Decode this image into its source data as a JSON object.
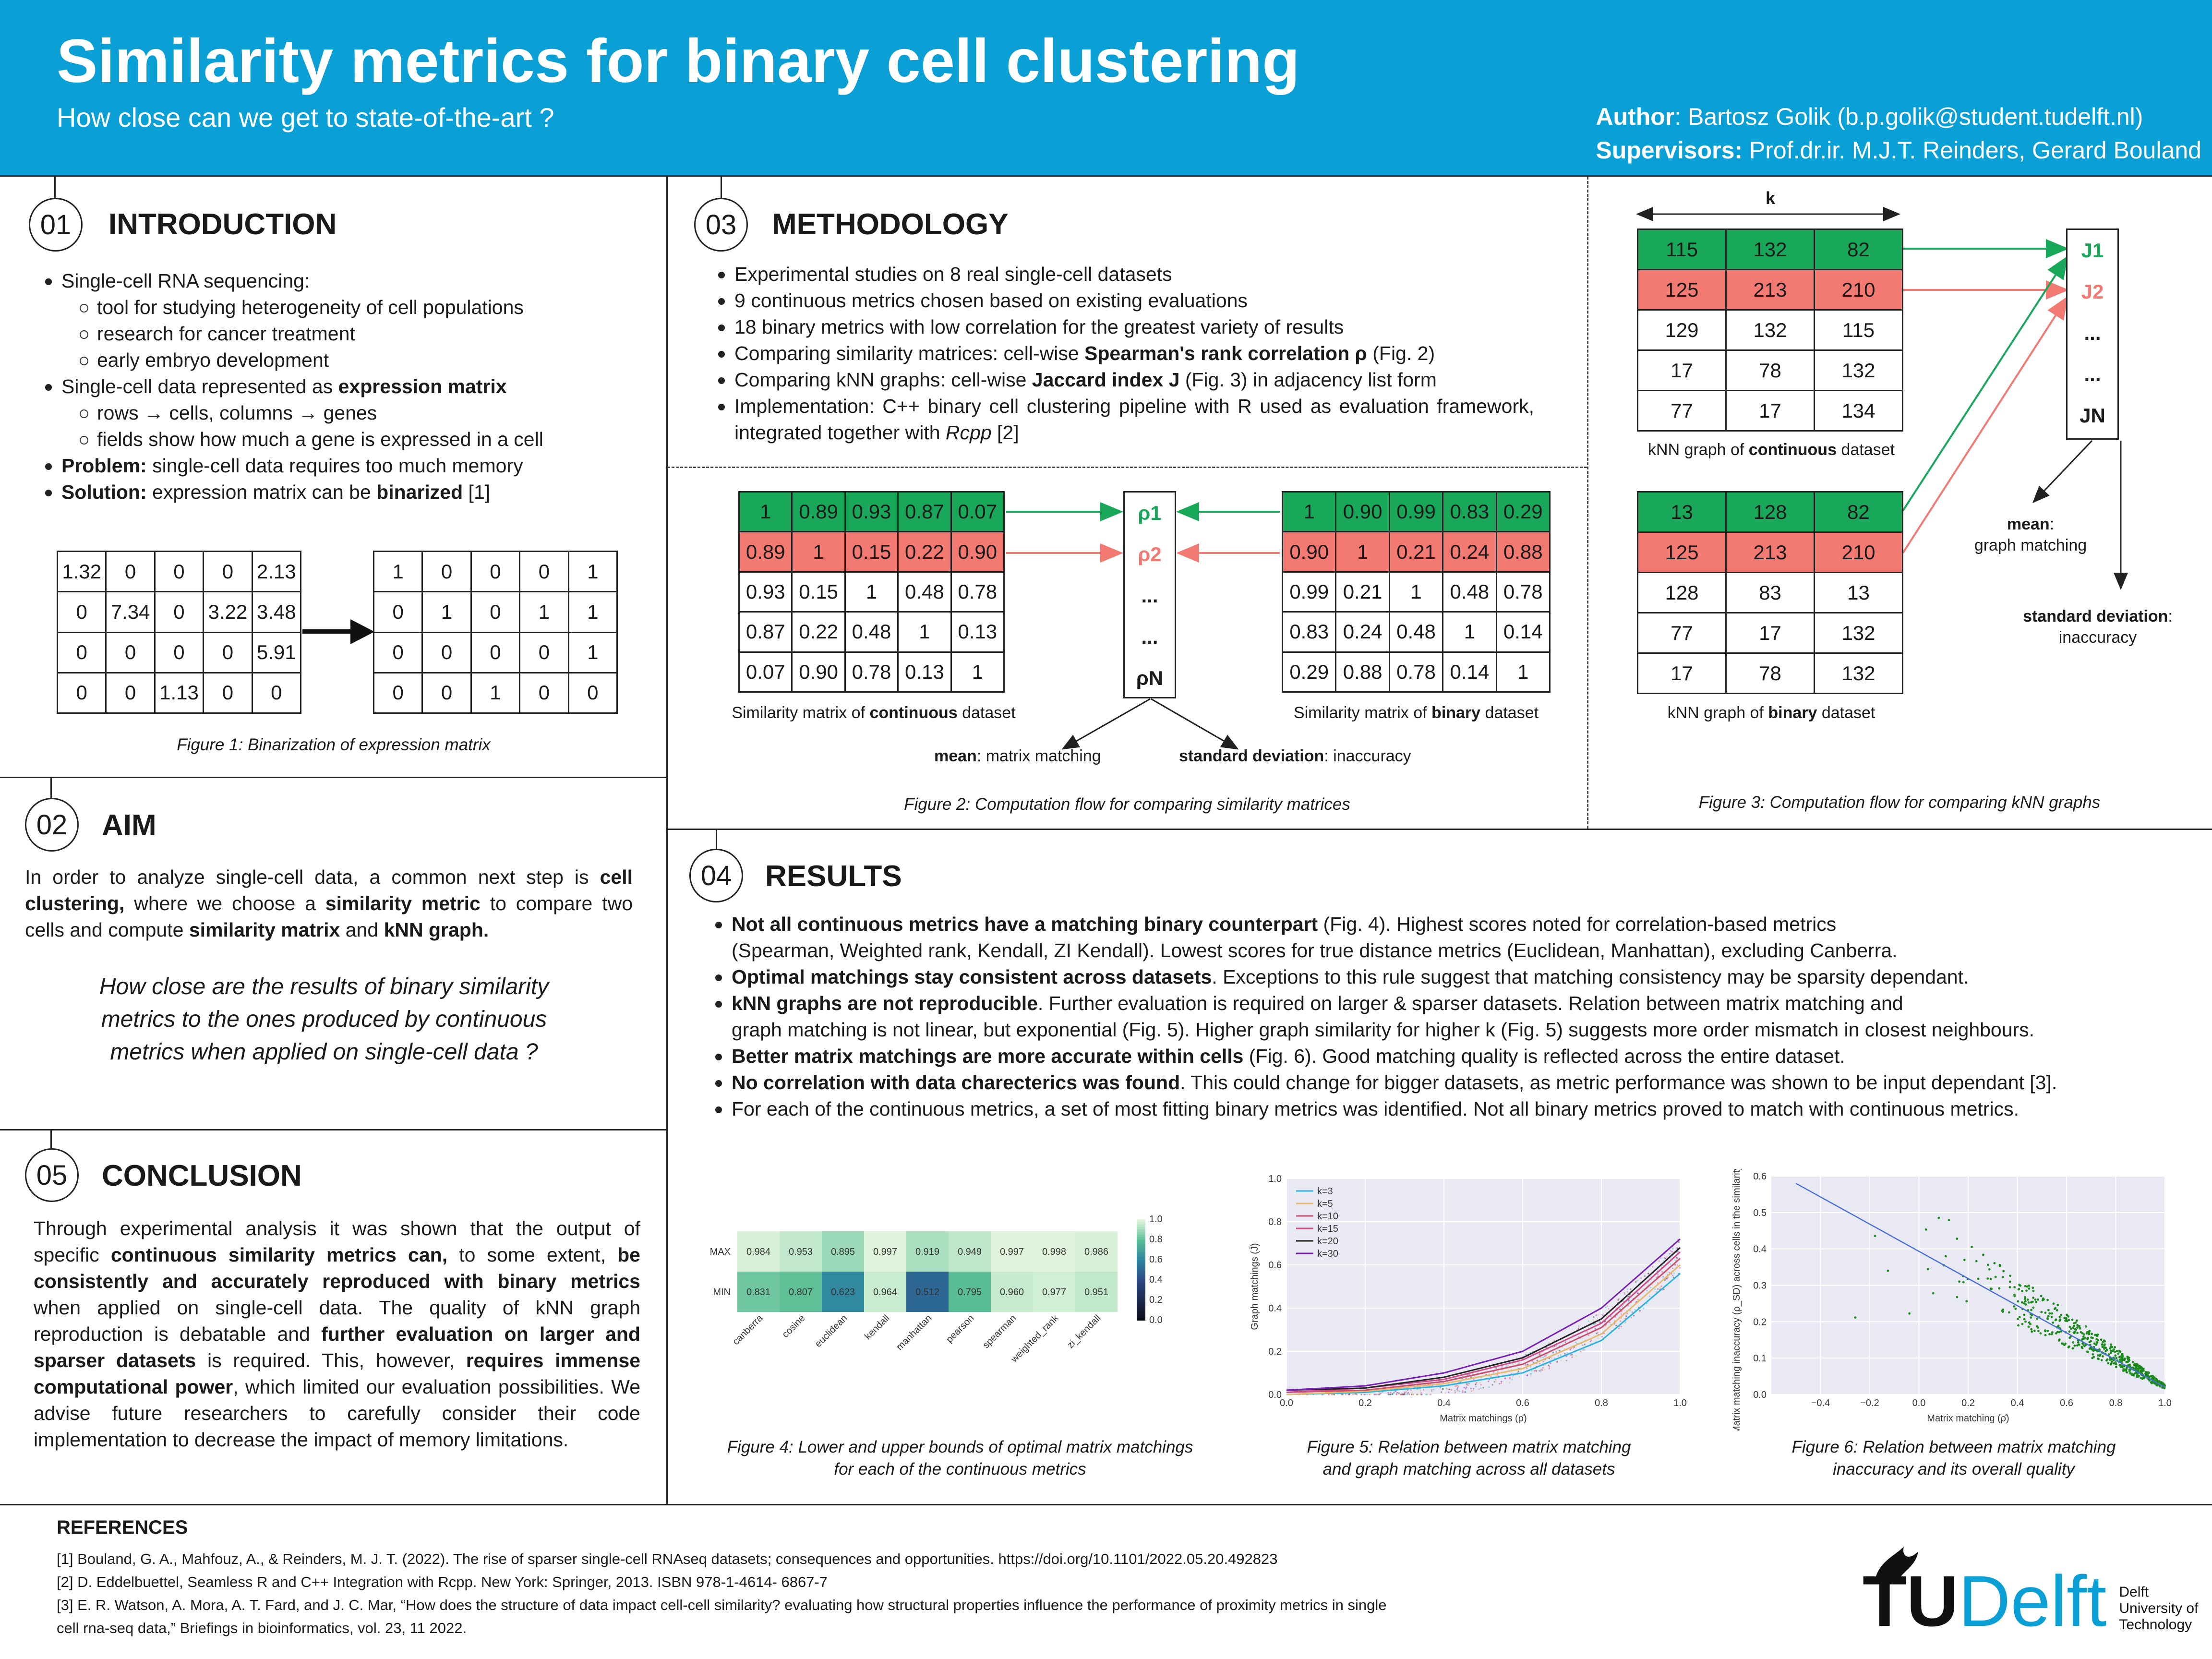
{
  "header": {
    "title": "Similarity metrics for binary cell clustering",
    "subtitle": "How close can we get to state-of-the-art ?",
    "author_label": "Author",
    "author_value": ":  Bartosz Golik (b.p.golik@student.tudelft.nl)",
    "supervisors_label": "Supervisors:",
    "supervisors_value": " Prof.dr.ir. M.J.T. Reinders, Gerard Bouland"
  },
  "intro": {
    "num": "01",
    "heading": "INTRODUCTION",
    "b1": "Single-cell RNA sequencing:",
    "b1a": "tool for studying heterogeneity of cell populations",
    "b1b": "research for cancer treatment",
    "b1c": "early embryo development",
    "b2_pre": "Single-cell data represented as ",
    "b2_bold": "expression matrix",
    "b2a": "rows → cells, columns → genes",
    "b2b": "fields show how much a gene is expressed in a cell",
    "b3_bold": "Problem:",
    "b3": " single-cell data requires too much memory",
    "b4_bold": "Solution:",
    "b4_pre": " expression matrix can be ",
    "b4_bold2": "binarized",
    "b4_post": " [1]",
    "figure_caption": "Figure 1: Binarization of expression matrix",
    "matrix_continuous": [
      [
        "1.32",
        "0",
        "0",
        "0",
        "2.13"
      ],
      [
        "0",
        "7.34",
        "0",
        "3.22",
        "3.48"
      ],
      [
        "0",
        "0",
        "0",
        "0",
        "5.91"
      ],
      [
        "0",
        "0",
        "1.13",
        "0",
        "0"
      ]
    ],
    "matrix_binary": [
      [
        "1",
        "0",
        "0",
        "0",
        "1"
      ],
      [
        "0",
        "1",
        "0",
        "1",
        "1"
      ],
      [
        "0",
        "0",
        "0",
        "0",
        "1"
      ],
      [
        "0",
        "0",
        "1",
        "0",
        "0"
      ]
    ]
  },
  "aim": {
    "num": "02",
    "heading": "AIM",
    "p_pre": "In order to analyze single-cell data, a common next step is ",
    "p_b1": "cell clustering,",
    "p_mid": " where we choose a ",
    "p_b2": "similarity metric",
    "p_mid2": " to compare two cells and compute ",
    "p_b3": "similarity matrix",
    "p_and": " and ",
    "p_b4": "kNN graph.",
    "question": "How close are the results of binary similarity metrics to the ones produced by continuous metrics when applied on single-cell data ?"
  },
  "conclusion": {
    "num": "05",
    "heading": "CONCLUSION",
    "t1": "Through experimental analysis it was shown that the output of specific ",
    "t1b": "continuous similarity metrics can,",
    "t2": " to some extent, ",
    "t2b": "be consistently and accurately reproduced with binary metrics",
    "t3": " when applied on single-cell data. The quality of kNN graph reproduction is debatable and ",
    "t3b": "further evaluation on larger and sparser datasets",
    "t4": " is required. This, however, ",
    "t4b": "requires immense computational power",
    "t5": ", which limited our evaluation possibilities. We advise future researchers to carefully consider their code implementation to decrease the impact of memory limitations."
  },
  "methodology": {
    "num": "03",
    "heading": "METHODOLOGY",
    "m1": "Experimental studies on 8 real single-cell datasets",
    "m2": "9 continuous metrics chosen based on existing evaluations",
    "m3": "18 binary metrics with low correlation for the greatest variety of results",
    "m4_pre": "Comparing similarity matrices: cell-wise ",
    "m4_b": "Spearman's rank correlation ρ",
    "m4_post": " (Fig. 2)",
    "m5_pre": "Comparing kNN graphs: cell-wise ",
    "m5_b": "Jaccard index J",
    "m5_post": " (Fig. 3) in adjacency list form",
    "m6_pre": "Implementation: C++ binary cell clustering pipeline with R used as evaluation framework, integrated together with ",
    "m6_i": "Rcpp",
    "m6_post": " [2]",
    "sim_cont": [
      [
        "1",
        "0.89",
        "0.93",
        "0.87",
        "0.07"
      ],
      [
        "0.89",
        "1",
        "0.15",
        "0.22",
        "0.90"
      ],
      [
        "0.93",
        "0.15",
        "1",
        "0.48",
        "0.78"
      ],
      [
        "0.87",
        "0.22",
        "0.48",
        "1",
        "0.13"
      ],
      [
        "0.07",
        "0.90",
        "0.78",
        "0.13",
        "1"
      ]
    ],
    "sim_bin": [
      [
        "1",
        "0.90",
        "0.99",
        "0.83",
        "0.29"
      ],
      [
        "0.90",
        "1",
        "0.21",
        "0.24",
        "0.88"
      ],
      [
        "0.99",
        "0.21",
        "1",
        "0.48",
        "0.78"
      ],
      [
        "0.83",
        "0.24",
        "0.48",
        "1",
        "0.14"
      ],
      [
        "0.29",
        "0.88",
        "0.78",
        "0.14",
        "1"
      ]
    ],
    "rho": [
      "ρ1",
      "ρ2",
      "...",
      "...",
      "ρN"
    ],
    "cap_cont_pre": "Similarity matrix of ",
    "cap_cont_b": "continuous",
    "cap_bin_b": "binary",
    "cap_suffix": " dataset",
    "mean_b": "mean",
    "mean_t": ": matrix matching",
    "std_b": "standard deviation",
    "std_t": ": inaccuracy",
    "fig2": "Figure 2: Computation flow for comparing similarity matrices"
  },
  "knn": {
    "k_label": "k",
    "knn_cont": [
      [
        "115",
        "132",
        "82"
      ],
      [
        "125",
        "213",
        "210"
      ],
      [
        "129",
        "132",
        "115"
      ],
      [
        "17",
        "78",
        "132"
      ],
      [
        "77",
        "17",
        "134"
      ]
    ],
    "knn_bin": [
      [
        "13",
        "128",
        "82"
      ],
      [
        "125",
        "213",
        "210"
      ],
      [
        "128",
        "83",
        "13"
      ],
      [
        "77",
        "17",
        "132"
      ],
      [
        "17",
        "78",
        "132"
      ]
    ],
    "J": [
      "J1",
      "J2",
      "...",
      "...",
      "JN"
    ],
    "cap_pre": "kNN graph of ",
    "cap_cont_b": "continuous",
    "cap_bin_b": "binary",
    "cap_suffix": " dataset",
    "mean_b": "mean",
    "mean_t": ":",
    "mean_t2": "graph matching",
    "std_b": "standard deviation",
    "std_t": ":",
    "std_t2": "inaccuracy",
    "fig3": "Figure 3: Computation flow for comparing kNN graphs"
  },
  "results": {
    "num": "04",
    "heading": "RESULTS",
    "r1b": "Not all continuous metrics have a matching binary counterpart",
    "r1": " (Fig. 4). Highest scores noted for correlation-based metrics",
    "r1c": "(Spearman, Weighted rank, Kendall, ZI Kendall). Lowest scores for true distance metrics (Euclidean, Manhattan), excluding Canberra.",
    "r2b": "Optimal matchings stay consistent across datasets",
    "r2": ". Exceptions to this rule suggest that matching consistency may be sparsity dependant.",
    "r3b": "kNN graphs are not reproducible",
    "r3": ". Further evaluation is required on larger & sparser datasets. Relation between matrix matching and",
    "r3c": "graph matching is not linear, but exponential (Fig. 5). Higher graph similarity for higher k (Fig. 5) suggests more order mismatch in closest neighbours.",
    "r4b": "Better matrix matchings are more accurate within cells",
    "r4": " (Fig. 6). Good matching quality is reflected across the entire dataset.",
    "r5b": "No correlation with data charecterics was found",
    "r5": ". This could change for bigger datasets, as metric performance was shown to be input dependant [3].",
    "r6": "For each of the continuous metrics, a set of most fitting binary metrics was identified. Not all binary metrics proved to match with continuous metrics.",
    "fig4a": "Figure 4: Lower and upper bounds of optimal matrix matchings",
    "fig4b": "for each of the continuous metrics",
    "fig5a": "Figure 5: Relation between matrix matching",
    "fig5b": "and graph matching across all datasets",
    "fig6a": "Figure 6: Relation between matrix matching",
    "fig6b": "inaccuracy and its overall quality"
  },
  "chart_data": [
    {
      "type": "heatmap",
      "rows": [
        "MAX",
        "MIN"
      ],
      "columns": [
        "canberra",
        "cosine",
        "euclidean",
        "kendall",
        "manhattan",
        "pearson",
        "spearman",
        "weighted_rank",
        "zi_kendall"
      ],
      "values": [
        [
          0.984,
          0.953,
          0.895,
          0.997,
          0.919,
          0.949,
          0.997,
          0.998,
          0.986
        ],
        [
          0.831,
          0.807,
          0.623,
          0.964,
          0.512,
          0.795,
          0.96,
          0.977,
          0.951
        ]
      ],
      "colorbar_ticks": [
        "0.0",
        "0.2",
        "0.4",
        "0.6",
        "0.8",
        "1.0"
      ],
      "vrange": [
        0,
        1
      ]
    },
    {
      "type": "line",
      "xlabel": "Matrix matchings (ρ̄)",
      "ylabel": "Graph matchings (J̄)",
      "xlim": [
        0,
        1
      ],
      "ylim": [
        0,
        1
      ],
      "xticks": [
        "0.0",
        "0.2",
        "0.4",
        "0.6",
        "0.8",
        "1.0"
      ],
      "yticks": [
        "0.0",
        "0.2",
        "0.4",
        "0.6",
        "0.8",
        "1.0"
      ],
      "series": [
        {
          "name": "k=3",
          "color": "#2bb3e0",
          "x": [
            0,
            0.2,
            0.4,
            0.6,
            0.8,
            1.0
          ],
          "y": [
            0.0,
            0.01,
            0.04,
            0.1,
            0.25,
            0.56
          ]
        },
        {
          "name": "k=5",
          "color": "#e8b86d",
          "x": [
            0,
            0.2,
            0.4,
            0.6,
            0.8,
            1.0
          ],
          "y": [
            0.0,
            0.015,
            0.05,
            0.12,
            0.28,
            0.6
          ]
        },
        {
          "name": "k=10",
          "color": "#c94f6d",
          "x": [
            0,
            0.2,
            0.4,
            0.6,
            0.8,
            1.0
          ],
          "y": [
            0.01,
            0.02,
            0.06,
            0.14,
            0.31,
            0.63
          ]
        },
        {
          "name": "k=15",
          "color": "#d04a8a",
          "x": [
            0,
            0.2,
            0.4,
            0.6,
            0.8,
            1.0
          ],
          "y": [
            0.01,
            0.03,
            0.07,
            0.16,
            0.33,
            0.66
          ]
        },
        {
          "name": "k=20",
          "color": "#222222",
          "x": [
            0,
            0.2,
            0.4,
            0.6,
            0.8,
            1.0
          ],
          "y": [
            0.02,
            0.03,
            0.08,
            0.17,
            0.35,
            0.68
          ]
        },
        {
          "name": "k=30",
          "color": "#7a1fb5",
          "x": [
            0,
            0.2,
            0.4,
            0.6,
            0.8,
            1.0
          ],
          "y": [
            0.02,
            0.04,
            0.1,
            0.2,
            0.4,
            0.72
          ]
        }
      ]
    },
    {
      "type": "scatter",
      "xlabel": "Matrix matching (ρ̄)",
      "ylabel": "Matrix matching inaccuracy (ρ_SD) across cells in the similarity matrix",
      "xlim": [
        -0.6,
        1
      ],
      "ylim": [
        0,
        0.6
      ],
      "xticks": [
        "−0.4",
        "−0.2",
        "0.0",
        "0.2",
        "0.4",
        "0.6",
        "0.8",
        "1.0"
      ],
      "yticks": [
        "0.0",
        "0.1",
        "0.2",
        "0.3",
        "0.4",
        "0.5",
        "0.6"
      ],
      "trend": {
        "x": [
          -0.5,
          1.0
        ],
        "y": [
          0.58,
          0.02
        ]
      },
      "point_color": "#1a8a1a"
    }
  ],
  "references": {
    "heading": "REFERENCES",
    "r1": "[1] Bouland, G. A., Mahfouz, A., & Reinders, M. J. T. (2022). The rise of sparser single-cell RNAseq datasets; consequences and opportunities. https://doi.org/10.1101/2022.05.20.492823",
    "r2": "[2] D. Eddelbuettel, Seamless R and C++ Integration with Rcpp. New York: Springer, 2013. ISBN 978-1-4614- 6867-7",
    "r3": "[3] E. R. Watson, A. Mora, A. T. Fard, and J. C. Mar, “How does the structure of data impact cell-cell similarity? evaluating how structural properties influence the performance of proximity metrics in single",
    "r3b": "cell rna-seq data,” Briefings in bioinformatics, vol. 23, 11 2022."
  },
  "logo": {
    "tu": "TU",
    "delft": "Delft",
    "l1": "Delft",
    "l2": "University of",
    "l3": "Technology"
  }
}
